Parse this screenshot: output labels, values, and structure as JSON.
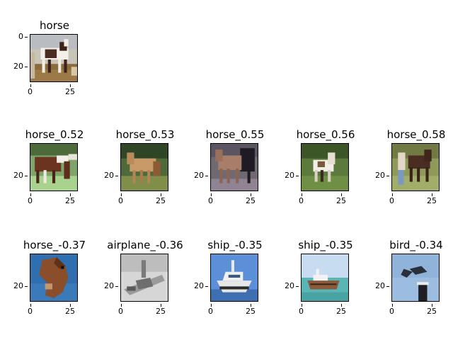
{
  "query": {
    "title": "horse",
    "image": "horse-pinto-standing",
    "ticks": {
      "x": [
        "0",
        "25"
      ],
      "y": [
        "0",
        "20"
      ]
    }
  },
  "similar": [
    {
      "title": "horse_0.52",
      "image": "horse-brown-grazing"
    },
    {
      "title": "horse_0.53",
      "image": "horse-tan-standing"
    },
    {
      "title": "horse_0.55",
      "image": "horse-dark-pair"
    },
    {
      "title": "horse_0.56",
      "image": "horse-white-field"
    },
    {
      "title": "horse_0.58",
      "image": "horse-with-person"
    }
  ],
  "dissimilar": [
    {
      "title": "horse_-0.37",
      "image": "horse-head-sky"
    },
    {
      "title": "airplane_-0.36",
      "image": "airplane-grayscale"
    },
    {
      "title": "ship_-0.35",
      "image": "ship-white-boat"
    },
    {
      "title": "ship_-0.35",
      "image": "ship-boat-shore"
    },
    {
      "title": "bird_-0.34",
      "image": "bird-on-post"
    }
  ],
  "ticks": {
    "x": [
      "0",
      "25"
    ],
    "y": [
      "0",
      "20"
    ]
  }
}
